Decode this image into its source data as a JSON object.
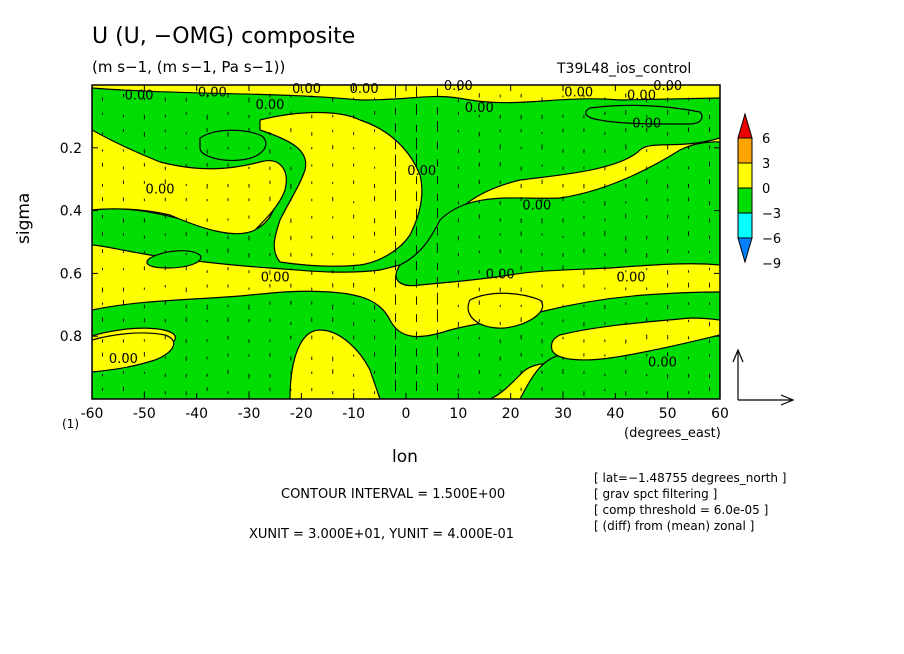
{
  "header": {
    "title": "U (U, −OMG) composite",
    "units": "(m s−1, (m s−1, Pa s−1))",
    "run_name": "T39L48_ios_control"
  },
  "page_number": "(1)",
  "footer": {
    "contour_interval": "CONTOUR INTERVAL = 1.500E+00",
    "xy_unit": "XUNIT = 3.000E+01, YUNIT = 4.000E-01"
  },
  "notes": [
    "[ lat=−1.48755 degrees_north ]",
    "[ grav spct filtering ]",
    "[ comp threshold = 6.0e-05 ]",
    "[ (diff) from (mean) zonal ]"
  ],
  "colors": {
    "yellow": "#ffff00",
    "green": "#00dd00",
    "orange": "#ffa500",
    "red": "#ee0000",
    "cyan": "#00ffff",
    "blue": "#0080ff"
  },
  "chart_data": {
    "type": "heatmap",
    "title": "U (U, −OMG) composite",
    "xlabel": "lon",
    "xunits": "(degrees_east)",
    "ylabel": "sigma",
    "xlim": [
      -60,
      60
    ],
    "ylim": [
      1.0,
      0.0
    ],
    "y_inverted": true,
    "x_ticks": [
      -60,
      -50,
      -40,
      -30,
      -20,
      -10,
      0,
      10,
      20,
      30,
      40,
      50,
      60
    ],
    "x_tick_labels": [
      "-60",
      "-50",
      "-40",
      "-30",
      "-20",
      "-10",
      "0",
      "10",
      "20",
      "30",
      "40",
      "50",
      "60"
    ],
    "y_ticks": [
      0.2,
      0.4,
      0.6,
      0.8
    ],
    "y_tick_labels": [
      "0.2",
      "0.4",
      "0.6",
      "0.8"
    ],
    "contour_interval": 1.5,
    "contour_label": "0.00",
    "colorbar": {
      "levels": [
        6,
        3,
        0,
        -3,
        -6,
        -9
      ],
      "labels": [
        "6",
        "3",
        "0",
        "−3",
        "−6",
        "−9"
      ],
      "colors": [
        "#ee0000",
        "#ffa500",
        "#ffff00",
        "#00dd00",
        "#00ffff",
        "#0080ff"
      ]
    },
    "contour_labels": [
      {
        "lon": -51,
        "sigma": 0.03,
        "text": "0.00"
      },
      {
        "lon": -37,
        "sigma": 0.02,
        "text": "0.00"
      },
      {
        "lon": -26,
        "sigma": 0.06,
        "text": "0.00"
      },
      {
        "lon": -19,
        "sigma": 0.01,
        "text": "0.00"
      },
      {
        "lon": -8,
        "sigma": 0.01,
        "text": "0.00"
      },
      {
        "lon": 10,
        "sigma": 0.0,
        "text": "0.00"
      },
      {
        "lon": 14,
        "sigma": 0.07,
        "text": "0.00"
      },
      {
        "lon": 33,
        "sigma": 0.02,
        "text": "0.00"
      },
      {
        "lon": 45,
        "sigma": 0.03,
        "text": "0.00"
      },
      {
        "lon": 50,
        "sigma": 0.0,
        "text": "0.00"
      },
      {
        "lon": 46,
        "sigma": 0.12,
        "text": "0.00"
      },
      {
        "lon": 3,
        "sigma": 0.27,
        "text": "0.00"
      },
      {
        "lon": -47,
        "sigma": 0.33,
        "text": "0.00"
      },
      {
        "lon": 25,
        "sigma": 0.38,
        "text": "0.00"
      },
      {
        "lon": -25,
        "sigma": 0.61,
        "text": "0.00"
      },
      {
        "lon": 18,
        "sigma": 0.6,
        "text": "0.00"
      },
      {
        "lon": 43,
        "sigma": 0.61,
        "text": "0.00"
      },
      {
        "lon": -54,
        "sigma": 0.87,
        "text": "0.00"
      },
      {
        "lon": 49,
        "sigma": 0.88,
        "text": "0.00"
      }
    ],
    "vector_reference": true
  }
}
